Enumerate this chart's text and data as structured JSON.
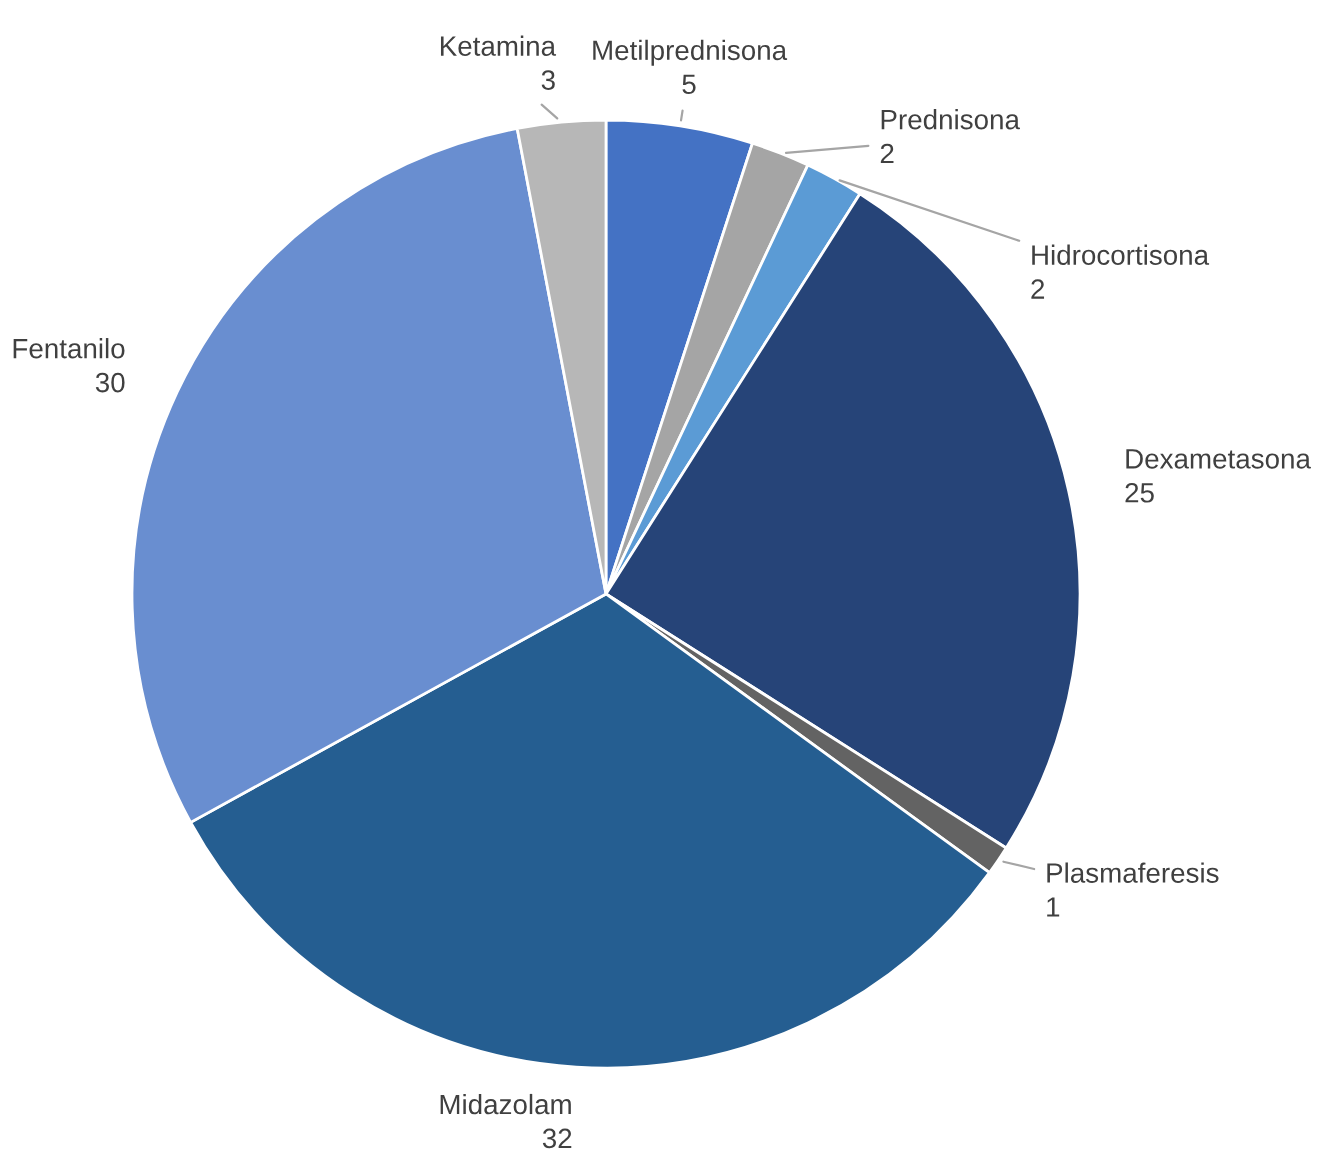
{
  "chart_data": {
    "type": "pie",
    "categories": [
      "Metilprednisona",
      "Prednisona",
      "Hidrocortisona",
      "Dexametasona",
      "Plasmaferesis",
      "Midazolam",
      "Fentanilo",
      "Ketamina"
    ],
    "values": [
      5,
      2,
      2,
      25,
      1,
      32,
      30,
      3
    ],
    "colors": [
      "#4472c4",
      "#a5a5a5",
      "#5b9bd5",
      "#264478",
      "#636363",
      "#255e91",
      "#698ed0",
      "#b7b7b7"
    ],
    "data_labels": true
  }
}
